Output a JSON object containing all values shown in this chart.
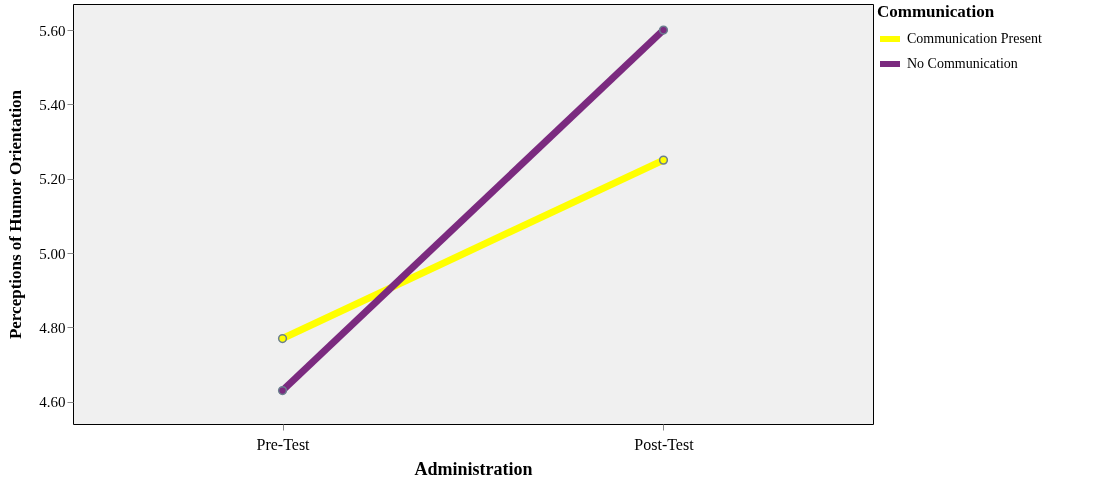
{
  "chart_data": {
    "type": "line",
    "xlabel": "Administration",
    "ylabel": "Perceptions of Humor Orientation",
    "legend_title": "Communication",
    "categories": [
      "Pre-Test",
      "Post-Test"
    ],
    "series": [
      {
        "name": "Communication Present",
        "color": "#ffff00",
        "values": [
          4.77,
          5.25
        ]
      },
      {
        "name": "No Communication",
        "color": "#7b2a7f",
        "values": [
          4.63,
          5.6
        ]
      }
    ],
    "ylim": [
      4.54,
      5.67
    ],
    "yticks": [
      {
        "value": 4.6,
        "label": "4.60"
      },
      {
        "value": 4.8,
        "label": "4.80"
      },
      {
        "value": 5.0,
        "label": "5.00"
      },
      {
        "value": 5.2,
        "label": "5.20"
      },
      {
        "value": 5.4,
        "label": "5.40"
      },
      {
        "value": 5.6,
        "label": "5.60"
      }
    ],
    "grid": false,
    "legend": "top right",
    "marker": "circle",
    "line_style": "solid"
  }
}
